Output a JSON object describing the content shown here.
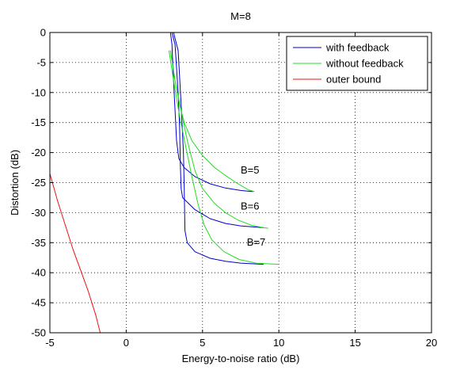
{
  "chart_data": {
    "type": "line",
    "title": "M=8",
    "xlabel": "Energy-to-noise ratio (dB)",
    "ylabel": "Distortion (dB)",
    "xlim": [
      -5,
      20
    ],
    "ylim": [
      -50,
      0
    ],
    "xticks": [
      -5,
      0,
      5,
      10,
      15,
      20
    ],
    "yticks": [
      0,
      -5,
      -10,
      -15,
      -20,
      -25,
      -30,
      -35,
      -40,
      -45,
      -50
    ],
    "grid": true,
    "legend_position": "top-right",
    "legend": [
      {
        "label": "with feedback",
        "color": "#0000cc"
      },
      {
        "label": "without feedback",
        "color": "#22dd22"
      },
      {
        "label": "outer bound",
        "color": "#ee1111"
      }
    ],
    "annotations": [
      {
        "text": "B=5",
        "x": 7.5,
        "y": -23.5
      },
      {
        "text": "B=6",
        "x": 7.5,
        "y": -29.5
      },
      {
        "text": "B=7",
        "x": 7.9,
        "y": -35.5
      }
    ],
    "series": [
      {
        "name": "with feedback",
        "color": "#0000cc",
        "points": [
          [
            -0.75,
            0
          ],
          [
            2.9,
            0
          ],
          [
            3.0,
            -2
          ],
          [
            3.1,
            -8
          ],
          [
            3.2,
            -13
          ],
          [
            3.3,
            -18
          ],
          [
            3.45,
            -21
          ],
          [
            3.8,
            -22.5
          ],
          [
            4.5,
            -24
          ],
          [
            5.5,
            -25.2
          ],
          [
            6.5,
            -25.9
          ],
          [
            7.5,
            -26.3
          ],
          [
            8.3,
            -26.5
          ]
        ]
      },
      {
        "name": "with feedback",
        "color": "#0000cc",
        "points": [
          [
            -0.75,
            0
          ],
          [
            3.0,
            0
          ],
          [
            3.2,
            -2
          ],
          [
            3.4,
            -10
          ],
          [
            3.5,
            -16
          ],
          [
            3.55,
            -22
          ],
          [
            3.6,
            -26
          ],
          [
            3.7,
            -27.5
          ],
          [
            4.5,
            -29.5
          ],
          [
            5.5,
            -31
          ],
          [
            6.5,
            -31.8
          ],
          [
            7.5,
            -32.2
          ],
          [
            9.0,
            -32.5
          ]
        ]
      },
      {
        "name": "with feedback",
        "color": "#0000cc",
        "points": [
          [
            -0.75,
            0
          ],
          [
            3.1,
            0
          ],
          [
            3.4,
            -3
          ],
          [
            3.6,
            -12
          ],
          [
            3.75,
            -20
          ],
          [
            3.8,
            -26
          ],
          [
            3.85,
            -33
          ],
          [
            4.0,
            -35
          ],
          [
            4.5,
            -36.5
          ],
          [
            5.5,
            -37.6
          ],
          [
            6.5,
            -38.1
          ],
          [
            7.5,
            -38.4
          ],
          [
            9.0,
            -38.6
          ]
        ]
      },
      {
        "name": "without feedback",
        "color": "#22dd22",
        "points": [
          [
            2.9,
            -3
          ],
          [
            3.2,
            -8
          ],
          [
            3.5,
            -12
          ],
          [
            3.8,
            -15
          ],
          [
            4.3,
            -18
          ],
          [
            5.0,
            -20.5
          ],
          [
            5.8,
            -22.5
          ],
          [
            6.5,
            -23.8
          ],
          [
            7.2,
            -25
          ],
          [
            8.0,
            -26.2
          ],
          [
            8.4,
            -26.5
          ]
        ]
      },
      {
        "name": "without feedback",
        "color": "#22dd22",
        "points": [
          [
            2.9,
            -3
          ],
          [
            3.2,
            -8
          ],
          [
            3.6,
            -13
          ],
          [
            4.0,
            -18
          ],
          [
            4.5,
            -23
          ],
          [
            5.0,
            -26
          ],
          [
            5.8,
            -28.5
          ],
          [
            6.5,
            -30
          ],
          [
            7.3,
            -31.2
          ],
          [
            8.2,
            -32.1
          ],
          [
            9.0,
            -32.5
          ],
          [
            9.3,
            -32.6
          ]
        ]
      },
      {
        "name": "without feedback",
        "color": "#22dd22",
        "points": [
          [
            2.8,
            -3
          ],
          [
            3.1,
            -8
          ],
          [
            3.5,
            -14
          ],
          [
            3.9,
            -19
          ],
          [
            4.3,
            -24
          ],
          [
            4.7,
            -28.5
          ],
          [
            5.1,
            -32
          ],
          [
            5.6,
            -34.5
          ],
          [
            6.4,
            -36.5
          ],
          [
            7.4,
            -37.8
          ],
          [
            8.5,
            -38.4
          ],
          [
            10.0,
            -38.6
          ]
        ]
      },
      {
        "name": "outer bound",
        "color": "#ee1111",
        "points": [
          [
            -5.0,
            -23.5
          ],
          [
            -4.5,
            -28
          ],
          [
            -4.0,
            -32
          ],
          [
            -3.5,
            -36
          ],
          [
            -3.0,
            -39.5
          ],
          [
            -2.5,
            -43
          ],
          [
            -2.0,
            -47
          ],
          [
            -1.7,
            -50
          ]
        ]
      }
    ]
  }
}
